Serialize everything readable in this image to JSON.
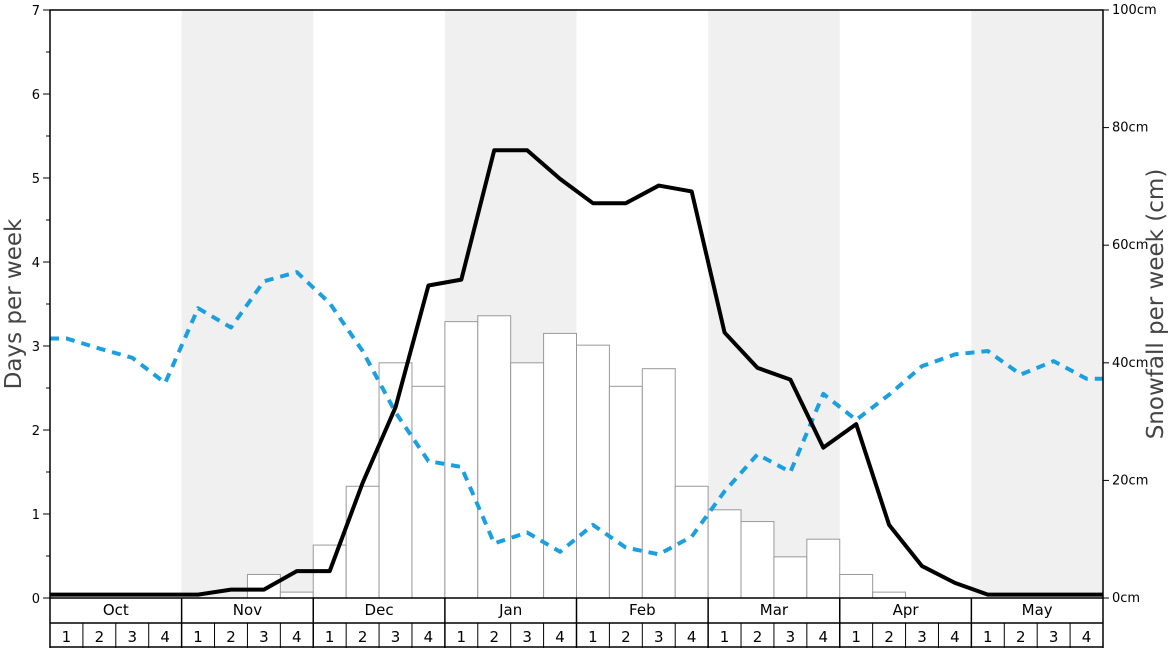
{
  "chart_data": {
    "type": "bar",
    "title": "",
    "ylabel": "Days per week",
    "y2label": "Snowfall per week (cm)",
    "ylim": [
      0,
      7
    ],
    "y2lim": [
      0,
      100
    ],
    "y_ticks": [
      "0",
      "1",
      "2",
      "3",
      "4",
      "5",
      "6",
      "7"
    ],
    "y2_ticks": [
      "0cm",
      "20cm",
      "40cm",
      "60cm",
      "80cm",
      "100cm"
    ],
    "months": [
      "Oct",
      "Nov",
      "Dec",
      "Jan",
      "Feb",
      "Mar",
      "Apr",
      "May"
    ],
    "weeks": [
      "1",
      "2",
      "3",
      "4"
    ],
    "x": [
      "Oct 1",
      "Oct 2",
      "Oct 3",
      "Oct 4",
      "Nov 1",
      "Nov 2",
      "Nov 3",
      "Nov 4",
      "Dec 1",
      "Dec 2",
      "Dec 3",
      "Dec 4",
      "Jan 1",
      "Jan 2",
      "Jan 3",
      "Jan 4",
      "Feb 1",
      "Feb 2",
      "Feb 3",
      "Feb 4",
      "Mar 1",
      "Mar 2",
      "Mar 3",
      "Mar 4",
      "Apr 1",
      "Apr 2",
      "Apr 3",
      "Apr 4",
      "May 1",
      "May 2",
      "May 3",
      "May 4"
    ],
    "series": [
      {
        "type": "bar",
        "axis": "right",
        "values": [
          0,
          0,
          0,
          0,
          0,
          0,
          4,
          1,
          9,
          19,
          40,
          36,
          47,
          48,
          40,
          45,
          43,
          36,
          39,
          19,
          15,
          13,
          7,
          10,
          4,
          1,
          0,
          0,
          0,
          0,
          0,
          0
        ]
      },
      {
        "type": "line",
        "axis": "left",
        "values": [
          0.04,
          0.04,
          0.04,
          0.04,
          0.04,
          0.1,
          0.1,
          0.32,
          0.32,
          1.37,
          2.27,
          3.72,
          3.79,
          5.33,
          5.33,
          4.99,
          4.7,
          4.7,
          4.91,
          4.84,
          3.16,
          2.74,
          2.6,
          1.79,
          2.07,
          0.87,
          0.38,
          0.18,
          0.04,
          0.04,
          0.04,
          0.04
        ]
      },
      {
        "type": "line",
        "axis": "left",
        "values": [
          3.09,
          2.97,
          2.86,
          2.56,
          3.45,
          3.22,
          3.77,
          3.88,
          3.51,
          2.94,
          2.21,
          1.63,
          1.56,
          0.65,
          0.78,
          0.55,
          0.87,
          0.6,
          0.52,
          0.73,
          1.27,
          1.71,
          1.5,
          2.43,
          2.12,
          2.42,
          2.76,
          2.9,
          2.94,
          2.66,
          2.82,
          2.61
        ]
      }
    ],
    "colors": {
      "bar_fill": "#ffffff",
      "bar_stroke": "#999999",
      "line1": "#000000",
      "line2": "#1a9fe0",
      "band": "#f0f0f0"
    },
    "grid": false
  }
}
